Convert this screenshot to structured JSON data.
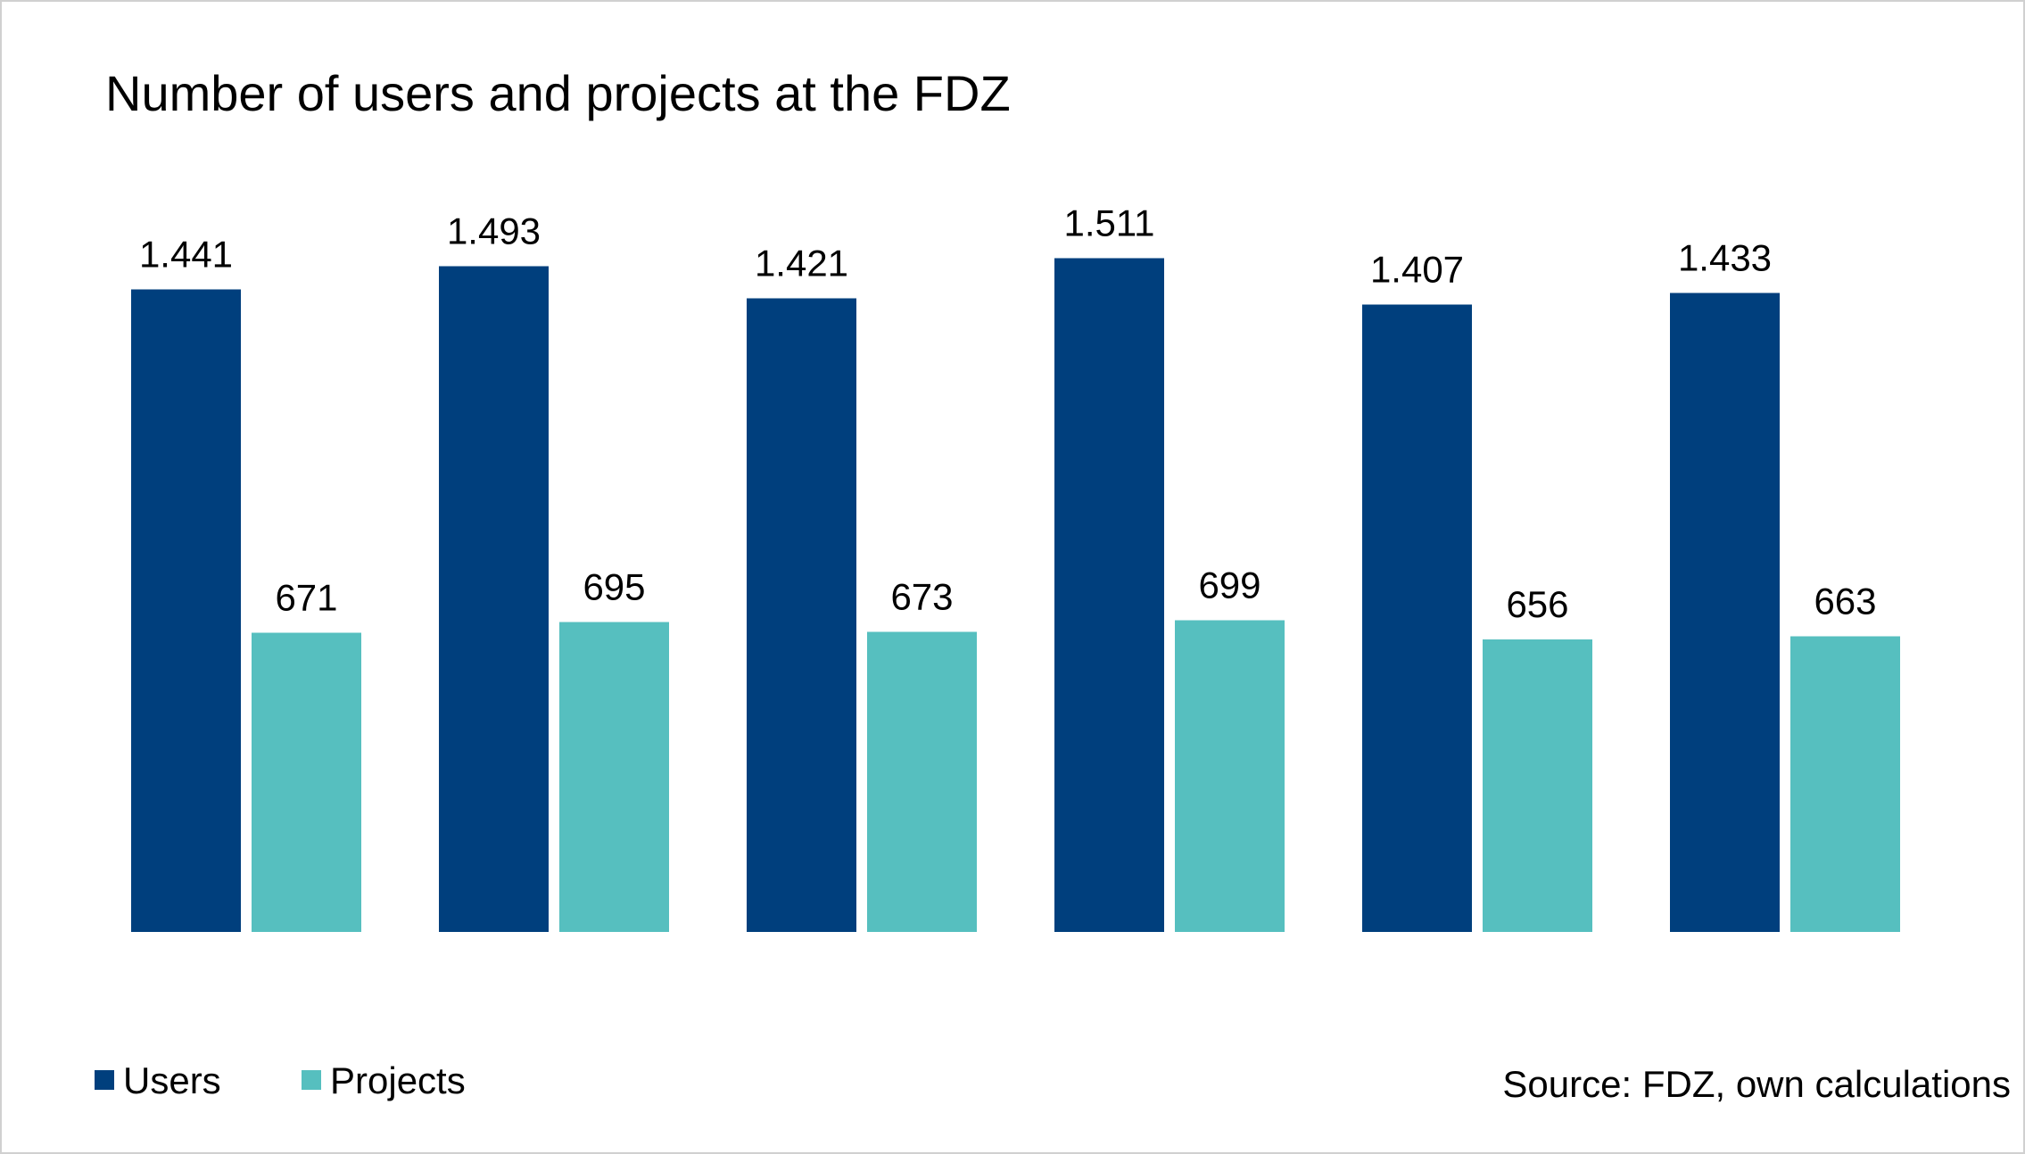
{
  "chart_data": {
    "type": "bar",
    "title": "Number of users and projects at the FDZ",
    "categories": [
      "",
      "",
      "",
      "",
      "",
      ""
    ],
    "series": [
      {
        "name": "Users",
        "color": "#003f7d",
        "values": [
          1441,
          1493,
          1421,
          1511,
          1407,
          1433
        ],
        "labels": [
          "1.441",
          "1.493",
          "1.421",
          "1.511",
          "1.407",
          "1.433"
        ]
      },
      {
        "name": "Projects",
        "color": "#56bfbf",
        "values": [
          671,
          695,
          673,
          699,
          656,
          663
        ],
        "labels": [
          "671",
          "695",
          "673",
          "699",
          "656",
          "663"
        ]
      }
    ],
    "ylim": [
      0,
      2000
    ],
    "grid": false,
    "legend_position": "bottom-left",
    "source": "Source: FDZ, own calculations"
  }
}
